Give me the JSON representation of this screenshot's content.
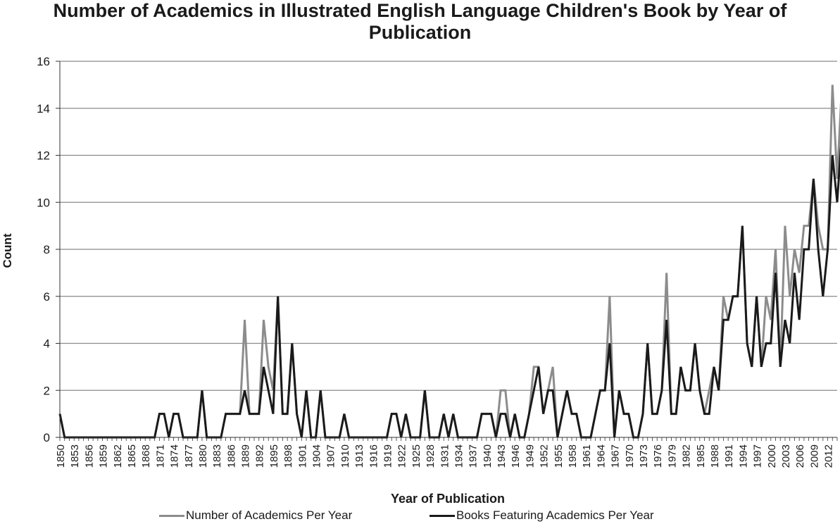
{
  "chart_data": {
    "type": "line",
    "title": "Number of Academics in Illustrated English Language Children's Book by Year of Publication",
    "xlabel": "Year of Publication",
    "ylabel": "Count",
    "ylim": [
      0,
      16
    ],
    "yticks": [
      0,
      2,
      4,
      6,
      8,
      10,
      12,
      14,
      16
    ],
    "grid": "horizontal",
    "legend_position": "bottom",
    "x_start": 1850,
    "x_end": 2014,
    "x_tick_labels": [
      "1850",
      "1853",
      "1856",
      "1859",
      "1862",
      "1865",
      "1868",
      "1871",
      "1874",
      "1877",
      "1880",
      "1883",
      "1886",
      "1889",
      "1892",
      "1895",
      "1898",
      "1901",
      "1904",
      "1907",
      "1910",
      "1913",
      "1916",
      "1919",
      "1922",
      "1925",
      "1928",
      "1931",
      "1934",
      "1937",
      "1940",
      "1943",
      "1946",
      "1949",
      "1952",
      "1955",
      "1958",
      "1961",
      "1964",
      "1967",
      "1970",
      "1973",
      "1976",
      "1979",
      "1982",
      "1985",
      "1988",
      "1991",
      "1994",
      "1997",
      "2000",
      "2003",
      "2006",
      "2009",
      "2012"
    ],
    "series": [
      {
        "name": "Number of Academics Per Year",
        "color": "#8c8c8c",
        "values": [
          1,
          0,
          0,
          0,
          0,
          0,
          0,
          0,
          0,
          0,
          0,
          0,
          0,
          0,
          0,
          0,
          0,
          0,
          0,
          0,
          0,
          1,
          1,
          0,
          1,
          1,
          0,
          0,
          0,
          0,
          2,
          0,
          0,
          0,
          0,
          1,
          1,
          1,
          1,
          5,
          1,
          1,
          1,
          5,
          3,
          2,
          6,
          1,
          1,
          4,
          1,
          0,
          2,
          0,
          0,
          2,
          0,
          0,
          0,
          0,
          1,
          0,
          0,
          0,
          0,
          0,
          0,
          0,
          0,
          0,
          1,
          1,
          0,
          1,
          0,
          0,
          0,
          2,
          0,
          0,
          0,
          1,
          0,
          1,
          0,
          0,
          0,
          0,
          0,
          1,
          1,
          1,
          0,
          2,
          2,
          0,
          1,
          0,
          0,
          1,
          3,
          3,
          1,
          2,
          3,
          0,
          1,
          2,
          1,
          1,
          0,
          0,
          0,
          1,
          2,
          2,
          6,
          0,
          2,
          1,
          1,
          0,
          0,
          1,
          4,
          1,
          1,
          2,
          7,
          1,
          1,
          3,
          2,
          2,
          4,
          2,
          1,
          2,
          3,
          2,
          6,
          5,
          6,
          6,
          9,
          4,
          3,
          6,
          3,
          6,
          5,
          8,
          3,
          9,
          6,
          8,
          7,
          9,
          9,
          11,
          9,
          8,
          8,
          15,
          11,
          15
        ],
        "max_point": {
          "x": 2013,
          "y": 15
        }
      },
      {
        "name": "Books Featuring Academics Per Year",
        "color": "#1a1a1a",
        "values": [
          1,
          0,
          0,
          0,
          0,
          0,
          0,
          0,
          0,
          0,
          0,
          0,
          0,
          0,
          0,
          0,
          0,
          0,
          0,
          0,
          0,
          1,
          1,
          0,
          1,
          1,
          0,
          0,
          0,
          0,
          2,
          0,
          0,
          0,
          0,
          1,
          1,
          1,
          1,
          2,
          1,
          1,
          1,
          3,
          2,
          1,
          6,
          1,
          1,
          4,
          1,
          0,
          2,
          0,
          0,
          2,
          0,
          0,
          0,
          0,
          1,
          0,
          0,
          0,
          0,
          0,
          0,
          0,
          0,
          0,
          1,
          1,
          0,
          1,
          0,
          0,
          0,
          2,
          0,
          0,
          0,
          1,
          0,
          1,
          0,
          0,
          0,
          0,
          0,
          1,
          1,
          1,
          0,
          1,
          1,
          0,
          1,
          0,
          0,
          1,
          2,
          3,
          1,
          2,
          2,
          0,
          1,
          2,
          1,
          1,
          0,
          0,
          0,
          1,
          2,
          2,
          4,
          0,
          2,
          1,
          1,
          0,
          0,
          1,
          4,
          1,
          1,
          2,
          5,
          1,
          1,
          3,
          2,
          2,
          4,
          2,
          1,
          1,
          3,
          2,
          5,
          5,
          6,
          6,
          9,
          4,
          3,
          6,
          3,
          4,
          4,
          7,
          3,
          5,
          4,
          7,
          5,
          8,
          8,
          11,
          8,
          6,
          8,
          12,
          10,
          13
        ]
      }
    ]
  }
}
